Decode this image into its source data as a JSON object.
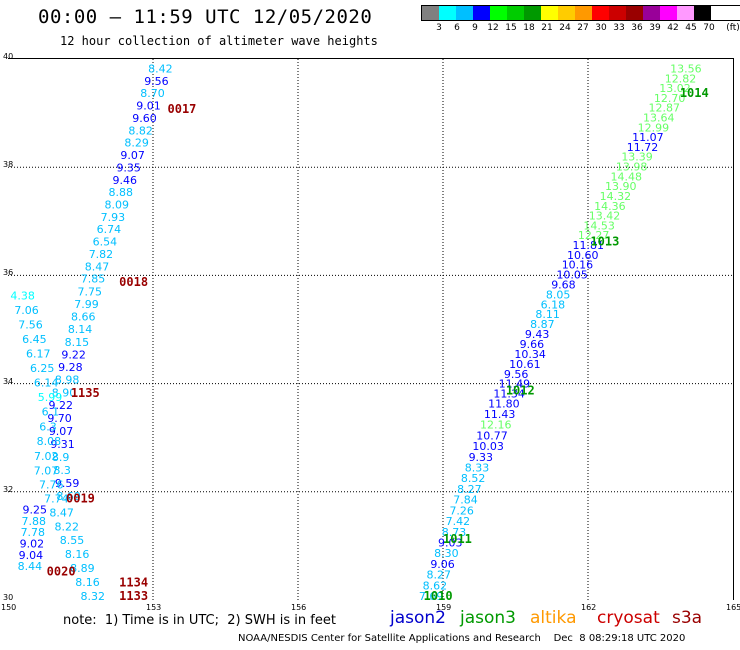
{
  "title": "00:00 – 11:59 UTC 12/05/2020",
  "subtitle": "12 hour collection of altimeter wave heights",
  "legend": {
    "unit": "(ft)",
    "colors": [
      "#808080",
      "#00ffff",
      "#00bfff",
      "#0000ff",
      "#00ff00",
      "#00cc00",
      "#009900",
      "#ffff00",
      "#ffcc00",
      "#ff9900",
      "#ff0000",
      "#cc0000",
      "#990000",
      "#990099",
      "#ff00ff",
      "#ff99ff",
      "#000000"
    ],
    "ticks": [
      "3",
      "6",
      "9",
      "12",
      "15",
      "18",
      "21",
      "24",
      "27",
      "30",
      "33",
      "36",
      "39",
      "42",
      "45",
      "70"
    ]
  },
  "axes": {
    "x_ticks": [
      "150",
      "153",
      "156",
      "159",
      "162",
      "165"
    ],
    "y_ticks": [
      "40",
      "38",
      "36",
      "34",
      "32",
      "30"
    ]
  },
  "note": "note:  1) Time is in UTC;  2) SWH is in feet",
  "satellites": [
    {
      "name": "jason2",
      "color": "#0000cc"
    },
    {
      "name": "jason3",
      "color": "#009900"
    },
    {
      "name": "altika",
      "color": "#ff9900"
    },
    {
      "name": "cryosat",
      "color": "#cc0000"
    },
    {
      "name": "s3a",
      "color": "#990000"
    }
  ],
  "credit": "NOAA/NESDIS Center for Satellite Applications and Research    Dec  8 08:29:18 UTC 2020",
  "map_data": {
    "lon_range": [
      150,
      165
    ],
    "lat_range": [
      30,
      40
    ],
    "time_labels": [
      {
        "text": "0017",
        "lon": 153.3,
        "lat": 39.0,
        "color": "#990000"
      },
      {
        "text": "0018",
        "lon": 152.3,
        "lat": 35.8,
        "color": "#990000"
      },
      {
        "text": "1135",
        "lon": 151.3,
        "lat": 33.75,
        "color": "#990000"
      },
      {
        "text": "0019",
        "lon": 151.2,
        "lat": 31.8,
        "color": "#990000"
      },
      {
        "text": "0020",
        "lon": 150.8,
        "lat": 30.45,
        "color": "#990000"
      },
      {
        "text": "1134",
        "lon": 152.3,
        "lat": 30.25,
        "color": "#990000"
      },
      {
        "text": "1133",
        "lon": 152.3,
        "lat": 30.0,
        "color": "#990000"
      },
      {
        "text": "1014",
        "lon": 163.9,
        "lat": 39.3,
        "color": "#009900"
      },
      {
        "text": "1013",
        "lon": 162.05,
        "lat": 36.55,
        "color": "#009900"
      },
      {
        "text": "1012",
        "lon": 160.3,
        "lat": 33.8,
        "color": "#009900"
      },
      {
        "text": "1011",
        "lon": 159.0,
        "lat": 31.05,
        "color": "#009900"
      },
      {
        "text": "1010",
        "lon": 158.6,
        "lat": 30.0,
        "color": "#009900"
      }
    ],
    "tracks": [
      {
        "name": "track-0017-0020",
        "points": [
          {
            "v": "8.42",
            "c": "#00bfff"
          },
          {
            "v": "9.56",
            "c": "#0000ff"
          },
          {
            "v": "8.70",
            "c": "#00bfff"
          },
          {
            "v": "9.01",
            "c": "#0000ff"
          },
          {
            "v": "9.60",
            "c": "#0000ff"
          },
          {
            "v": "8.82",
            "c": "#00bfff"
          },
          {
            "v": "8.29",
            "c": "#00bfff"
          },
          {
            "v": "9.07",
            "c": "#0000ff"
          },
          {
            "v": "9.35",
            "c": "#0000ff"
          },
          {
            "v": "9.46",
            "c": "#0000ff"
          },
          {
            "v": "8.88",
            "c": "#00bfff"
          },
          {
            "v": "8.09",
            "c": "#00bfff"
          },
          {
            "v": "7.93",
            "c": "#00bfff"
          },
          {
            "v": "6.74",
            "c": "#00bfff"
          },
          {
            "v": "6.54",
            "c": "#00bfff"
          },
          {
            "v": "7.82",
            "c": "#00bfff"
          },
          {
            "v": "8.47",
            "c": "#00bfff"
          },
          {
            "v": "7.85",
            "c": "#00bfff"
          },
          {
            "v": "7.75",
            "c": "#00bfff"
          },
          {
            "v": "7.99",
            "c": "#00bfff"
          },
          {
            "v": "8.66",
            "c": "#00bfff"
          },
          {
            "v": "8.14",
            "c": "#00bfff"
          },
          {
            "v": "8.15",
            "c": "#00bfff"
          },
          {
            "v": "9.22",
            "c": "#0000ff"
          },
          {
            "v": "9.28",
            "c": "#0000ff"
          },
          {
            "v": "8.98",
            "c": "#00bfff"
          },
          {
            "v": "8.90",
            "c": "#00bfff"
          },
          {
            "v": "9.22",
            "c": "#0000ff"
          },
          {
            "v": "9.70",
            "c": "#0000ff"
          },
          {
            "v": "9.07",
            "c": "#0000ff"
          },
          {
            "v": "9.31",
            "c": "#0000ff"
          },
          {
            "v": "8.9",
            "c": "#00bfff"
          },
          {
            "v": "8.3",
            "c": "#00bfff"
          },
          {
            "v": "9.59",
            "c": "#0000ff"
          },
          {
            "v": "8.69",
            "c": "#00bfff"
          }
        ]
      },
      {
        "name": "track-1133-1135",
        "points": [
          {
            "v": "4.38",
            "c": "#00ffff"
          },
          {
            "v": "7.06",
            "c": "#00bfff"
          },
          {
            "v": "7.56",
            "c": "#00bfff"
          },
          {
            "v": "6.45",
            "c": "#00bfff"
          },
          {
            "v": "6.17",
            "c": "#00bfff"
          },
          {
            "v": "6.25",
            "c": "#00bfff"
          },
          {
            "v": "6.14",
            "c": "#00bfff"
          },
          {
            "v": "5.99",
            "c": "#00ffff"
          },
          {
            "v": "6.1",
            "c": "#00bfff"
          },
          {
            "v": "6.3",
            "c": "#00bfff"
          },
          {
            "v": "8.08",
            "c": "#00bfff"
          },
          {
            "v": "7.02",
            "c": "#00bfff"
          },
          {
            "v": "7.07",
            "c": "#00bfff"
          },
          {
            "v": "7.76",
            "c": "#00bfff"
          },
          {
            "v": "7.74",
            "c": "#00bfff"
          },
          {
            "v": "8.47",
            "c": "#00bfff"
          },
          {
            "v": "8.22",
            "c": "#00bfff"
          },
          {
            "v": "8.55",
            "c": "#00bfff"
          },
          {
            "v": "8.16",
            "c": "#00bfff"
          },
          {
            "v": "8.89",
            "c": "#00bfff"
          },
          {
            "v": "8.16",
            "c": "#00bfff"
          },
          {
            "v": "8.32",
            "c": "#00bfff"
          }
        ]
      },
      {
        "name": "track-0019-0020",
        "points": [
          {
            "v": "9.25",
            "c": "#0000ff"
          },
          {
            "v": "7.88",
            "c": "#00bfff"
          },
          {
            "v": "7.78",
            "c": "#00bfff"
          },
          {
            "v": "9.02",
            "c": "#0000ff"
          },
          {
            "v": "9.04",
            "c": "#0000ff"
          },
          {
            "v": "8.44",
            "c": "#00bfff"
          }
        ]
      },
      {
        "name": "track-1010-1014",
        "points": [
          {
            "v": "13.56",
            "c": "#66ff66"
          },
          {
            "v": "12.82",
            "c": "#66ff66"
          },
          {
            "v": "13.02",
            "c": "#66ff66"
          },
          {
            "v": "12.70",
            "c": "#66ff66"
          },
          {
            "v": "12.87",
            "c": "#66ff66"
          },
          {
            "v": "13.64",
            "c": "#66ff66"
          },
          {
            "v": "12.99",
            "c": "#66ff66"
          },
          {
            "v": "11.07",
            "c": "#0000ff"
          },
          {
            "v": "11.72",
            "c": "#0000ff"
          },
          {
            "v": "13.39",
            "c": "#66ff66"
          },
          {
            "v": "13.98",
            "c": "#66ff66"
          },
          {
            "v": "14.48",
            "c": "#66ff66"
          },
          {
            "v": "13.90",
            "c": "#66ff66"
          },
          {
            "v": "14.32",
            "c": "#66ff66"
          },
          {
            "v": "14.36",
            "c": "#66ff66"
          },
          {
            "v": "13.42",
            "c": "#66ff66"
          },
          {
            "v": "14.53",
            "c": "#66ff66"
          },
          {
            "v": "12.27",
            "c": "#66ff66"
          },
          {
            "v": "11.81",
            "c": "#0000ff"
          },
          {
            "v": "10.60",
            "c": "#0000ff"
          },
          {
            "v": "10.16",
            "c": "#0000ff"
          },
          {
            "v": "10.05",
            "c": "#0000ff"
          },
          {
            "v": "9.68",
            "c": "#0000ff"
          },
          {
            "v": "8.05",
            "c": "#00bfff"
          },
          {
            "v": "6.18",
            "c": "#00bfff"
          },
          {
            "v": "8.11",
            "c": "#00bfff"
          },
          {
            "v": "8.87",
            "c": "#00bfff"
          },
          {
            "v": "9.43",
            "c": "#0000ff"
          },
          {
            "v": "9.66",
            "c": "#0000ff"
          },
          {
            "v": "10.34",
            "c": "#0000ff"
          },
          {
            "v": "10.61",
            "c": "#0000ff"
          },
          {
            "v": "9.56",
            "c": "#0000ff"
          },
          {
            "v": "11.49",
            "c": "#0000ff"
          },
          {
            "v": "11.34",
            "c": "#0000ff"
          },
          {
            "v": "11.80",
            "c": "#0000ff"
          },
          {
            "v": "11.43",
            "c": "#0000ff"
          },
          {
            "v": "12.16",
            "c": "#66ff66"
          },
          {
            "v": "10.77",
            "c": "#0000ff"
          },
          {
            "v": "10.03",
            "c": "#0000ff"
          },
          {
            "v": "9.33",
            "c": "#0000ff"
          },
          {
            "v": "8.33",
            "c": "#00bfff"
          },
          {
            "v": "8.52",
            "c": "#00bfff"
          },
          {
            "v": "8.27",
            "c": "#00bfff"
          },
          {
            "v": "7.84",
            "c": "#00bfff"
          },
          {
            "v": "7.26",
            "c": "#00bfff"
          },
          {
            "v": "7.42",
            "c": "#00bfff"
          },
          {
            "v": "8.73",
            "c": "#00bfff"
          },
          {
            "v": "9.03",
            "c": "#0000ff"
          },
          {
            "v": "8.30",
            "c": "#00bfff"
          },
          {
            "v": "9.06",
            "c": "#0000ff"
          },
          {
            "v": "8.27",
            "c": "#00bfff"
          },
          {
            "v": "8.62",
            "c": "#00bfff"
          },
          {
            "v": "7.69",
            "c": "#00bfff"
          }
        ]
      }
    ]
  }
}
